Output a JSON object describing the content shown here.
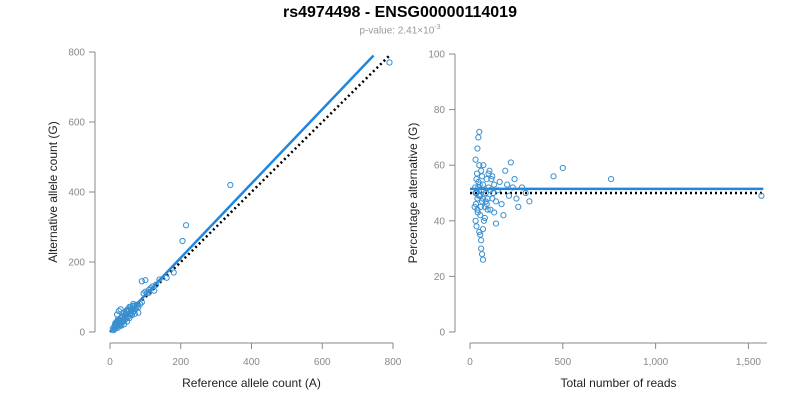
{
  "title": "rs4974498 - ENSG00000114019",
  "subtitle": {
    "prefix": "p-value: 2.41×10",
    "exponent": "-3"
  },
  "colors": {
    "points": "#3a8fd0",
    "fit_line": "#1f86e0",
    "reference_line": "#000000",
    "axis": "#888888"
  },
  "chart_data": [
    {
      "type": "scatter",
      "xlabel": "Reference allele count (A)",
      "ylabel": "Alternative allele count (G)",
      "xlim": [
        0,
        800
      ],
      "ylim": [
        0,
        800
      ],
      "xticks": [
        0,
        200,
        400,
        600,
        800
      ],
      "xtick_labels": [
        "0",
        "200",
        "400",
        "600",
        "800"
      ],
      "yticks": [
        0,
        200,
        400,
        600,
        800
      ],
      "ytick_labels": [
        "0",
        "200",
        "400",
        "600",
        "800"
      ],
      "grid": false,
      "fit_line": {
        "x1": 0,
        "y1": 0,
        "x2": 745,
        "y2": 790
      },
      "reference_line": {
        "x1": 0,
        "y1": 0,
        "x2": 790,
        "y2": 790
      },
      "points": [
        [
          15,
          10
        ],
        [
          18,
          14
        ],
        [
          20,
          18
        ],
        [
          22,
          12
        ],
        [
          25,
          20
        ],
        [
          12,
          8
        ],
        [
          28,
          22
        ],
        [
          30,
          25
        ],
        [
          32,
          18
        ],
        [
          35,
          28
        ],
        [
          38,
          30
        ],
        [
          40,
          22
        ],
        [
          42,
          35
        ],
        [
          45,
          38
        ],
        [
          48,
          30
        ],
        [
          50,
          42
        ],
        [
          52,
          45
        ],
        [
          55,
          40
        ],
        [
          58,
          50
        ],
        [
          60,
          55
        ],
        [
          62,
          48
        ],
        [
          65,
          58
        ],
        [
          68,
          60
        ],
        [
          70,
          52
        ],
        [
          72,
          65
        ],
        [
          75,
          70
        ],
        [
          18,
          28
        ],
        [
          22,
          35
        ],
        [
          25,
          30
        ],
        [
          28,
          18
        ],
        [
          30,
          40
        ],
        [
          35,
          45
        ],
        [
          40,
          55
        ],
        [
          45,
          60
        ],
        [
          50,
          65
        ],
        [
          55,
          72
        ],
        [
          60,
          62
        ],
        [
          65,
          75
        ],
        [
          70,
          68
        ],
        [
          75,
          78
        ],
        [
          80,
          70
        ],
        [
          85,
          80
        ],
        [
          90,
          85
        ],
        [
          95,
          110
        ],
        [
          100,
          115
        ],
        [
          105,
          112
        ],
        [
          110,
          120
        ],
        [
          115,
          125
        ],
        [
          120,
          130
        ],
        [
          125,
          118
        ],
        [
          130,
          135
        ],
        [
          20,
          50
        ],
        [
          25,
          60
        ],
        [
          30,
          65
        ],
        [
          10,
          5
        ],
        [
          8,
          10
        ],
        [
          15,
          25
        ],
        [
          20,
          30
        ],
        [
          25,
          35
        ],
        [
          30,
          28
        ],
        [
          35,
          32
        ],
        [
          40,
          40
        ],
        [
          45,
          48
        ],
        [
          50,
          52
        ],
        [
          60,
          65
        ],
        [
          70,
          75
        ],
        [
          80,
          55
        ],
        [
          90,
          145
        ],
        [
          100,
          148
        ],
        [
          110,
          112
        ],
        [
          140,
          150
        ],
        [
          160,
          155
        ],
        [
          180,
          170
        ],
        [
          205,
          260
        ],
        [
          215,
          305
        ],
        [
          340,
          420
        ],
        [
          790,
          770
        ],
        [
          12,
          15
        ],
        [
          14,
          20
        ],
        [
          16,
          22
        ],
        [
          18,
          26
        ],
        [
          22,
          30
        ],
        [
          26,
          34
        ],
        [
          32,
          40
        ],
        [
          36,
          44
        ],
        [
          44,
          52
        ],
        [
          48,
          58
        ],
        [
          54,
          62
        ],
        [
          58,
          70
        ],
        [
          66,
          80
        ]
      ]
    },
    {
      "type": "scatter",
      "xlabel": "Total number of reads",
      "ylabel": "Percentage alternative (G)",
      "xlim": [
        0,
        1600
      ],
      "ylim": [
        0,
        100
      ],
      "xticks": [
        0,
        500,
        1000,
        1500
      ],
      "xtick_labels": [
        "0",
        "500",
        "1,000",
        "1,500"
      ],
      "yticks": [
        0,
        20,
        40,
        60,
        80,
        100
      ],
      "ytick_labels": [
        "0",
        "20",
        "40",
        "60",
        "80",
        "100"
      ],
      "grid": false,
      "fit_line": {
        "x1": 0,
        "y1": 51.5,
        "x2": 1580,
        "y2": 51.5
      },
      "reference_line": {
        "x1": 0,
        "y1": 50,
        "x2": 1580,
        "y2": 50
      },
      "points": [
        [
          25,
          45
        ],
        [
          30,
          50
        ],
        [
          35,
          55
        ],
        [
          40,
          48
        ],
        [
          45,
          52
        ],
        [
          50,
          60
        ],
        [
          55,
          42
        ],
        [
          60,
          58
        ],
        [
          65,
          47
        ],
        [
          70,
          53
        ],
        [
          30,
          62
        ],
        [
          35,
          38
        ],
        [
          40,
          66
        ],
        [
          45,
          70
        ],
        [
          50,
          72
        ],
        [
          55,
          35
        ],
        [
          60,
          30
        ],
        [
          65,
          28
        ],
        [
          70,
          26
        ],
        [
          75,
          40
        ],
        [
          80,
          45
        ],
        [
          85,
          50
        ],
        [
          90,
          55
        ],
        [
          95,
          48
        ],
        [
          100,
          52
        ],
        [
          110,
          44
        ],
        [
          120,
          56
        ],
        [
          130,
          43
        ],
        [
          140,
          47
        ],
        [
          150,
          51
        ],
        [
          160,
          54
        ],
        [
          170,
          46
        ],
        [
          180,
          42
        ],
        [
          190,
          58
        ],
        [
          200,
          53
        ],
        [
          210,
          49
        ],
        [
          220,
          61
        ],
        [
          230,
          52
        ],
        [
          240,
          55
        ],
        [
          250,
          48
        ],
        [
          260,
          45
        ],
        [
          280,
          52
        ],
        [
          300,
          50
        ],
        [
          320,
          47
        ],
        [
          450,
          56
        ],
        [
          500,
          59
        ],
        [
          760,
          55
        ],
        [
          1570,
          49
        ],
        [
          30,
          40
        ],
        [
          40,
          44
        ],
        [
          50,
          36
        ],
        [
          60,
          33
        ],
        [
          70,
          37
        ],
        [
          80,
          41
        ],
        [
          90,
          46
        ],
        [
          100,
          57
        ],
        [
          110,
          51
        ],
        [
          120,
          48
        ],
        [
          130,
          53
        ],
        [
          140,
          39
        ],
        [
          35,
          50
        ],
        [
          45,
          54
        ],
        [
          55,
          49
        ],
        [
          65,
          56
        ],
        [
          75,
          51
        ],
        [
          85,
          47
        ],
        [
          95,
          44
        ],
        [
          105,
          58
        ],
        [
          115,
          55
        ],
        [
          125,
          50
        ],
        [
          28,
          52
        ],
        [
          32,
          46
        ],
        [
          38,
          57
        ],
        [
          42,
          43
        ],
        [
          48,
          49
        ],
        [
          52,
          53
        ],
        [
          58,
          45
        ],
        [
          62,
          51
        ],
        [
          68,
          48
        ],
        [
          72,
          60
        ]
      ]
    }
  ]
}
